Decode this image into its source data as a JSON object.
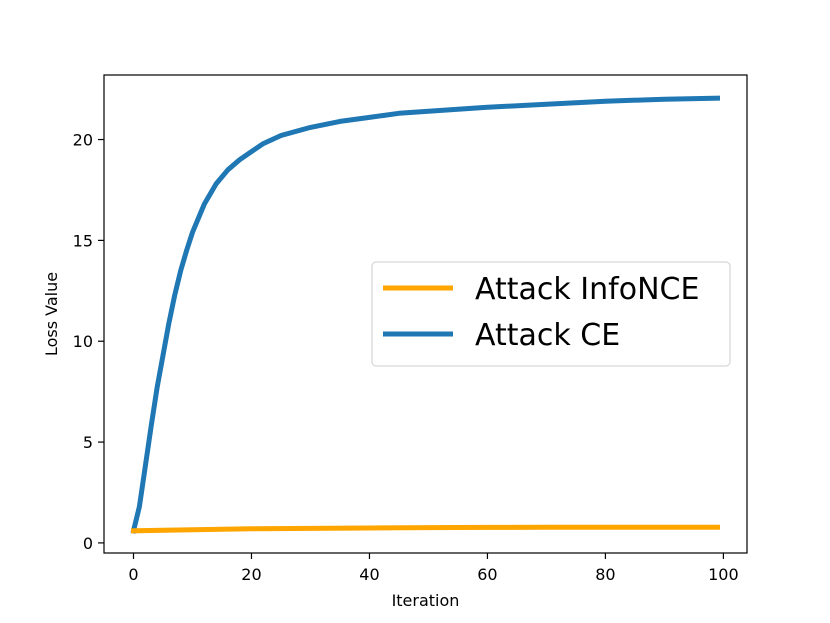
{
  "chart_data": {
    "type": "line",
    "title": "",
    "xlabel": "Iteration",
    "ylabel": "Loss Value",
    "xlim": [
      -5,
      104
    ],
    "ylim": [
      -0.5,
      23.2
    ],
    "xticks": [
      0,
      20,
      40,
      60,
      80,
      100
    ],
    "yticks": [
      0,
      5,
      10,
      15,
      20
    ],
    "grid": false,
    "legend_position": "center-right",
    "series": [
      {
        "name": "Attack InfoNCE",
        "color": "#ffa500",
        "x": [
          0,
          10,
          20,
          30,
          40,
          50,
          60,
          70,
          80,
          90,
          99
        ],
        "y": [
          0.6,
          0.65,
          0.7,
          0.72,
          0.74,
          0.76,
          0.77,
          0.78,
          0.78,
          0.78,
          0.78
        ]
      },
      {
        "name": "Attack CE",
        "color": "#1f77b4",
        "x": [
          0,
          1,
          2,
          3,
          4,
          5,
          6,
          7,
          8,
          9,
          10,
          12,
          14,
          16,
          18,
          20,
          22,
          25,
          30,
          35,
          40,
          45,
          50,
          55,
          60,
          70,
          80,
          90,
          99
        ],
        "y": [
          0.6,
          1.8,
          3.8,
          5.8,
          7.7,
          9.3,
          10.9,
          12.3,
          13.5,
          14.5,
          15.4,
          16.8,
          17.8,
          18.5,
          19.0,
          19.4,
          19.8,
          20.2,
          20.6,
          20.9,
          21.1,
          21.3,
          21.4,
          21.5,
          21.6,
          21.75,
          21.9,
          22.0,
          22.05
        ]
      }
    ]
  }
}
